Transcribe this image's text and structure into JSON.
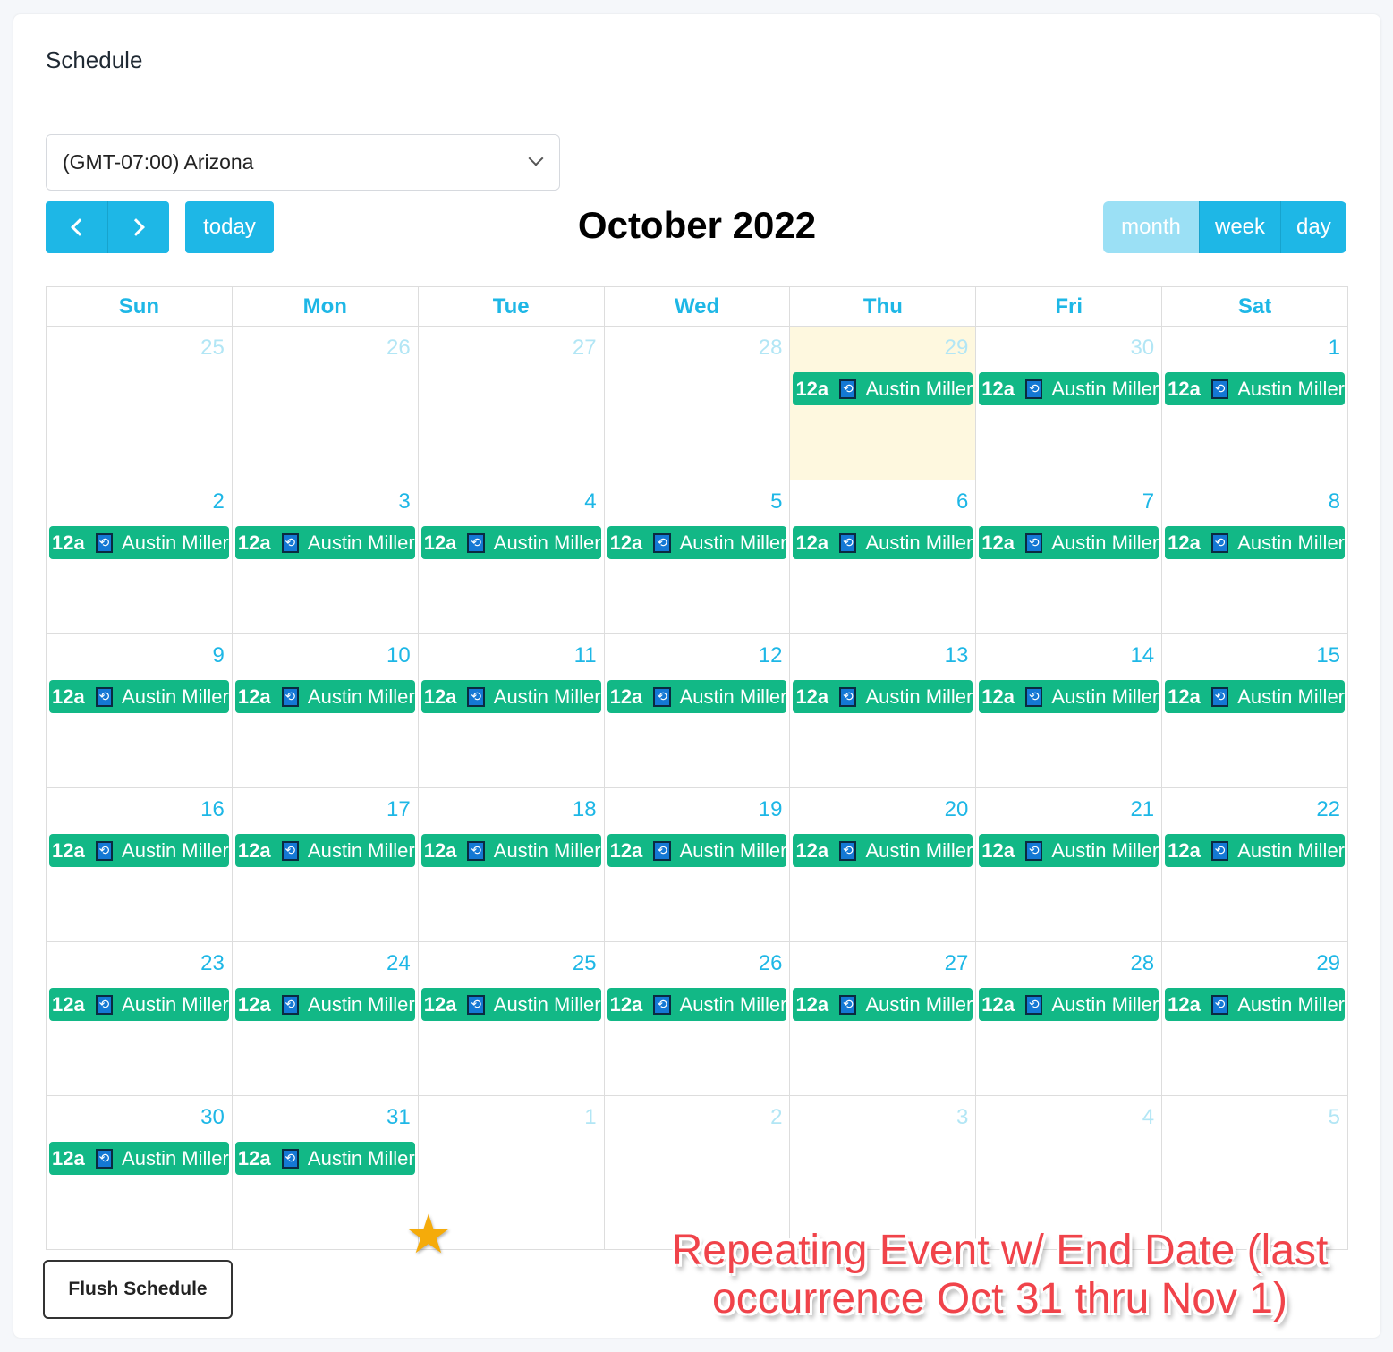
{
  "card": {
    "title": "Schedule"
  },
  "timezone": {
    "value": "(GMT-07:00) Arizona"
  },
  "toolbar": {
    "prev_icon": "chevron-left-icon",
    "next_icon": "chevron-right-icon",
    "today_label": "today",
    "title": "October 2022",
    "views": [
      "month",
      "week",
      "day"
    ],
    "active_view": "month"
  },
  "colors": {
    "accent": "#1eb7e6",
    "event": "#12b886",
    "today_bg": "#fef8df"
  },
  "weekdays": [
    "Sun",
    "Mon",
    "Tue",
    "Wed",
    "Thu",
    "Fri",
    "Sat"
  ],
  "event": {
    "time": "12a",
    "icon": "repeat-icon",
    "title": "Austin Miller"
  },
  "weeks": [
    [
      {
        "d": "25",
        "other": true
      },
      {
        "d": "26",
        "other": true
      },
      {
        "d": "27",
        "other": true
      },
      {
        "d": "28",
        "other": true
      },
      {
        "d": "29",
        "other": true,
        "today": true,
        "ev": true
      },
      {
        "d": "30",
        "other": true,
        "ev": true
      },
      {
        "d": "1",
        "ev": true
      }
    ],
    [
      {
        "d": "2",
        "ev": true
      },
      {
        "d": "3",
        "ev": true
      },
      {
        "d": "4",
        "ev": true
      },
      {
        "d": "5",
        "ev": true
      },
      {
        "d": "6",
        "ev": true
      },
      {
        "d": "7",
        "ev": true
      },
      {
        "d": "8",
        "ev": true
      }
    ],
    [
      {
        "d": "9",
        "ev": true
      },
      {
        "d": "10",
        "ev": true
      },
      {
        "d": "11",
        "ev": true
      },
      {
        "d": "12",
        "ev": true
      },
      {
        "d": "13",
        "ev": true
      },
      {
        "d": "14",
        "ev": true
      },
      {
        "d": "15",
        "ev": true
      }
    ],
    [
      {
        "d": "16",
        "ev": true
      },
      {
        "d": "17",
        "ev": true
      },
      {
        "d": "18",
        "ev": true
      },
      {
        "d": "19",
        "ev": true
      },
      {
        "d": "20",
        "ev": true
      },
      {
        "d": "21",
        "ev": true
      },
      {
        "d": "22",
        "ev": true
      }
    ],
    [
      {
        "d": "23",
        "ev": true
      },
      {
        "d": "24",
        "ev": true
      },
      {
        "d": "25",
        "ev": true
      },
      {
        "d": "26",
        "ev": true
      },
      {
        "d": "27",
        "ev": true
      },
      {
        "d": "28",
        "ev": true
      },
      {
        "d": "29",
        "ev": true
      }
    ],
    [
      {
        "d": "30",
        "ev": true
      },
      {
        "d": "31",
        "ev": true
      },
      {
        "d": "1",
        "other": true
      },
      {
        "d": "2",
        "other": true
      },
      {
        "d": "3",
        "other": true
      },
      {
        "d": "4",
        "other": true
      },
      {
        "d": "5",
        "other": true
      }
    ]
  ],
  "flush_label": "Flush Schedule",
  "annotation": {
    "text": "Repeating Event w/ End Date (last occurrence Oct 31 thru Nov 1)",
    "star_icon": "star-icon"
  }
}
